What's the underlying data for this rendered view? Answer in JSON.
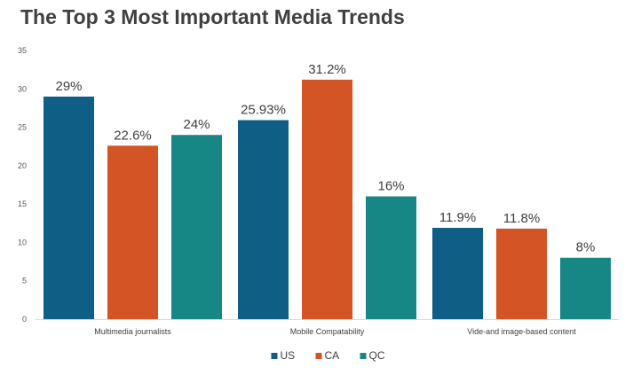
{
  "chart_data": {
    "type": "bar",
    "title": "The Top 3 Most Important Media Trends",
    "xlabel": "",
    "ylabel": "",
    "ylim": [
      0,
      35
    ],
    "yticks": [
      0,
      5,
      10,
      15,
      20,
      25,
      30,
      35
    ],
    "grid": false,
    "legend": "bottom",
    "categories": [
      "Multimedia journalists",
      "Mobile Compatability",
      "Vide-and image-based content"
    ],
    "series": [
      {
        "name": "US",
        "color": "#0e5e86",
        "values": [
          29,
          25.93,
          11.9
        ],
        "labels": [
          "29%",
          "25.93%",
          "11.9%"
        ]
      },
      {
        "name": "CA",
        "color": "#d35424",
        "values": [
          22.6,
          31.2,
          11.8
        ],
        "labels": [
          "22.6%",
          "31.2%",
          "11.8%"
        ]
      },
      {
        "name": "QC",
        "color": "#168784",
        "values": [
          24,
          16,
          8
        ],
        "labels": [
          "24%",
          "16%",
          "8%"
        ]
      }
    ]
  }
}
